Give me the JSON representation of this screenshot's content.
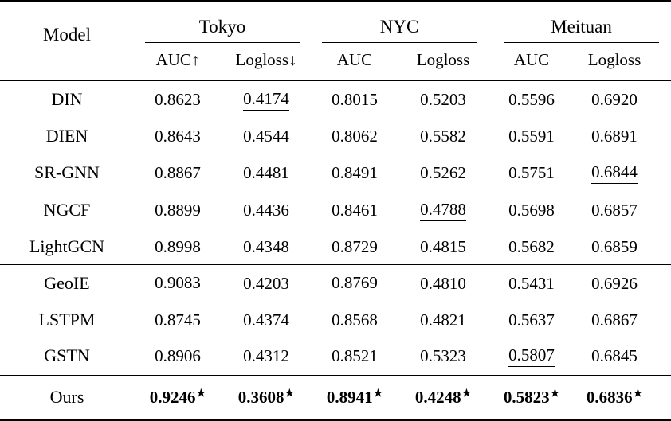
{
  "table": {
    "model_header": "Model",
    "column_groups": [
      {
        "label": "Tokyo",
        "subcolumns": [
          "AUC↑",
          "Logloss↓"
        ]
      },
      {
        "label": "NYC",
        "subcolumns": [
          "AUC",
          "Logloss"
        ]
      },
      {
        "label": "Meituan",
        "subcolumns": [
          "AUC",
          "Logloss"
        ]
      }
    ],
    "star_symbol": "★",
    "row_groups": [
      {
        "rows": [
          {
            "model": "DIN",
            "cells": [
              {
                "text": "0.8623"
              },
              {
                "text": "0.4174",
                "underline": true
              },
              {
                "text": "0.8015"
              },
              {
                "text": "0.5203"
              },
              {
                "text": "0.5596"
              },
              {
                "text": "0.6920"
              }
            ]
          },
          {
            "model": "DIEN",
            "cells": [
              {
                "text": "0.8643"
              },
              {
                "text": "0.4544"
              },
              {
                "text": "0.8062"
              },
              {
                "text": "0.5582"
              },
              {
                "text": "0.5591"
              },
              {
                "text": "0.6891"
              }
            ]
          }
        ]
      },
      {
        "rows": [
          {
            "model": "SR-GNN",
            "cells": [
              {
                "text": "0.8867"
              },
              {
                "text": "0.4481"
              },
              {
                "text": "0.8491"
              },
              {
                "text": "0.5262"
              },
              {
                "text": "0.5751"
              },
              {
                "text": "0.6844",
                "underline": true
              }
            ]
          },
          {
            "model": "NGCF",
            "cells": [
              {
                "text": "0.8899"
              },
              {
                "text": "0.4436"
              },
              {
                "text": "0.8461"
              },
              {
                "text": "0.4788",
                "underline": true
              },
              {
                "text": "0.5698"
              },
              {
                "text": "0.6857"
              }
            ]
          },
          {
            "model": "LightGCN",
            "cells": [
              {
                "text": "0.8998"
              },
              {
                "text": "0.4348"
              },
              {
                "text": "0.8729"
              },
              {
                "text": "0.4815"
              },
              {
                "text": "0.5682"
              },
              {
                "text": "0.6859"
              }
            ]
          }
        ]
      },
      {
        "rows": [
          {
            "model": "GeoIE",
            "cells": [
              {
                "text": "0.9083",
                "underline": true
              },
              {
                "text": "0.4203"
              },
              {
                "text": "0.8769",
                "underline": true
              },
              {
                "text": "0.4810"
              },
              {
                "text": "0.5431"
              },
              {
                "text": "0.6926"
              }
            ]
          },
          {
            "model": "LSTPM",
            "cells": [
              {
                "text": "0.8745"
              },
              {
                "text": "0.4374"
              },
              {
                "text": "0.8568"
              },
              {
                "text": "0.4821"
              },
              {
                "text": "0.5637"
              },
              {
                "text": "0.6867"
              }
            ]
          },
          {
            "model": "GSTN",
            "cells": [
              {
                "text": "0.8906"
              },
              {
                "text": "0.4312"
              },
              {
                "text": "0.8521"
              },
              {
                "text": "0.5323"
              },
              {
                "text": "0.5807",
                "underline": true
              },
              {
                "text": "0.6845"
              }
            ]
          }
        ]
      },
      {
        "ours": true,
        "rows": [
          {
            "model": "Ours",
            "cells": [
              {
                "text": "0.9246",
                "bold": true,
                "star": true
              },
              {
                "text": "0.3608",
                "bold": true,
                "star": true
              },
              {
                "text": "0.8941",
                "bold": true,
                "star": true
              },
              {
                "text": "0.4248",
                "bold": true,
                "star": true
              },
              {
                "text": "0.5823",
                "bold": true,
                "star": true
              },
              {
                "text": "0.6836",
                "bold": true,
                "star": true
              }
            ]
          }
        ]
      }
    ]
  }
}
